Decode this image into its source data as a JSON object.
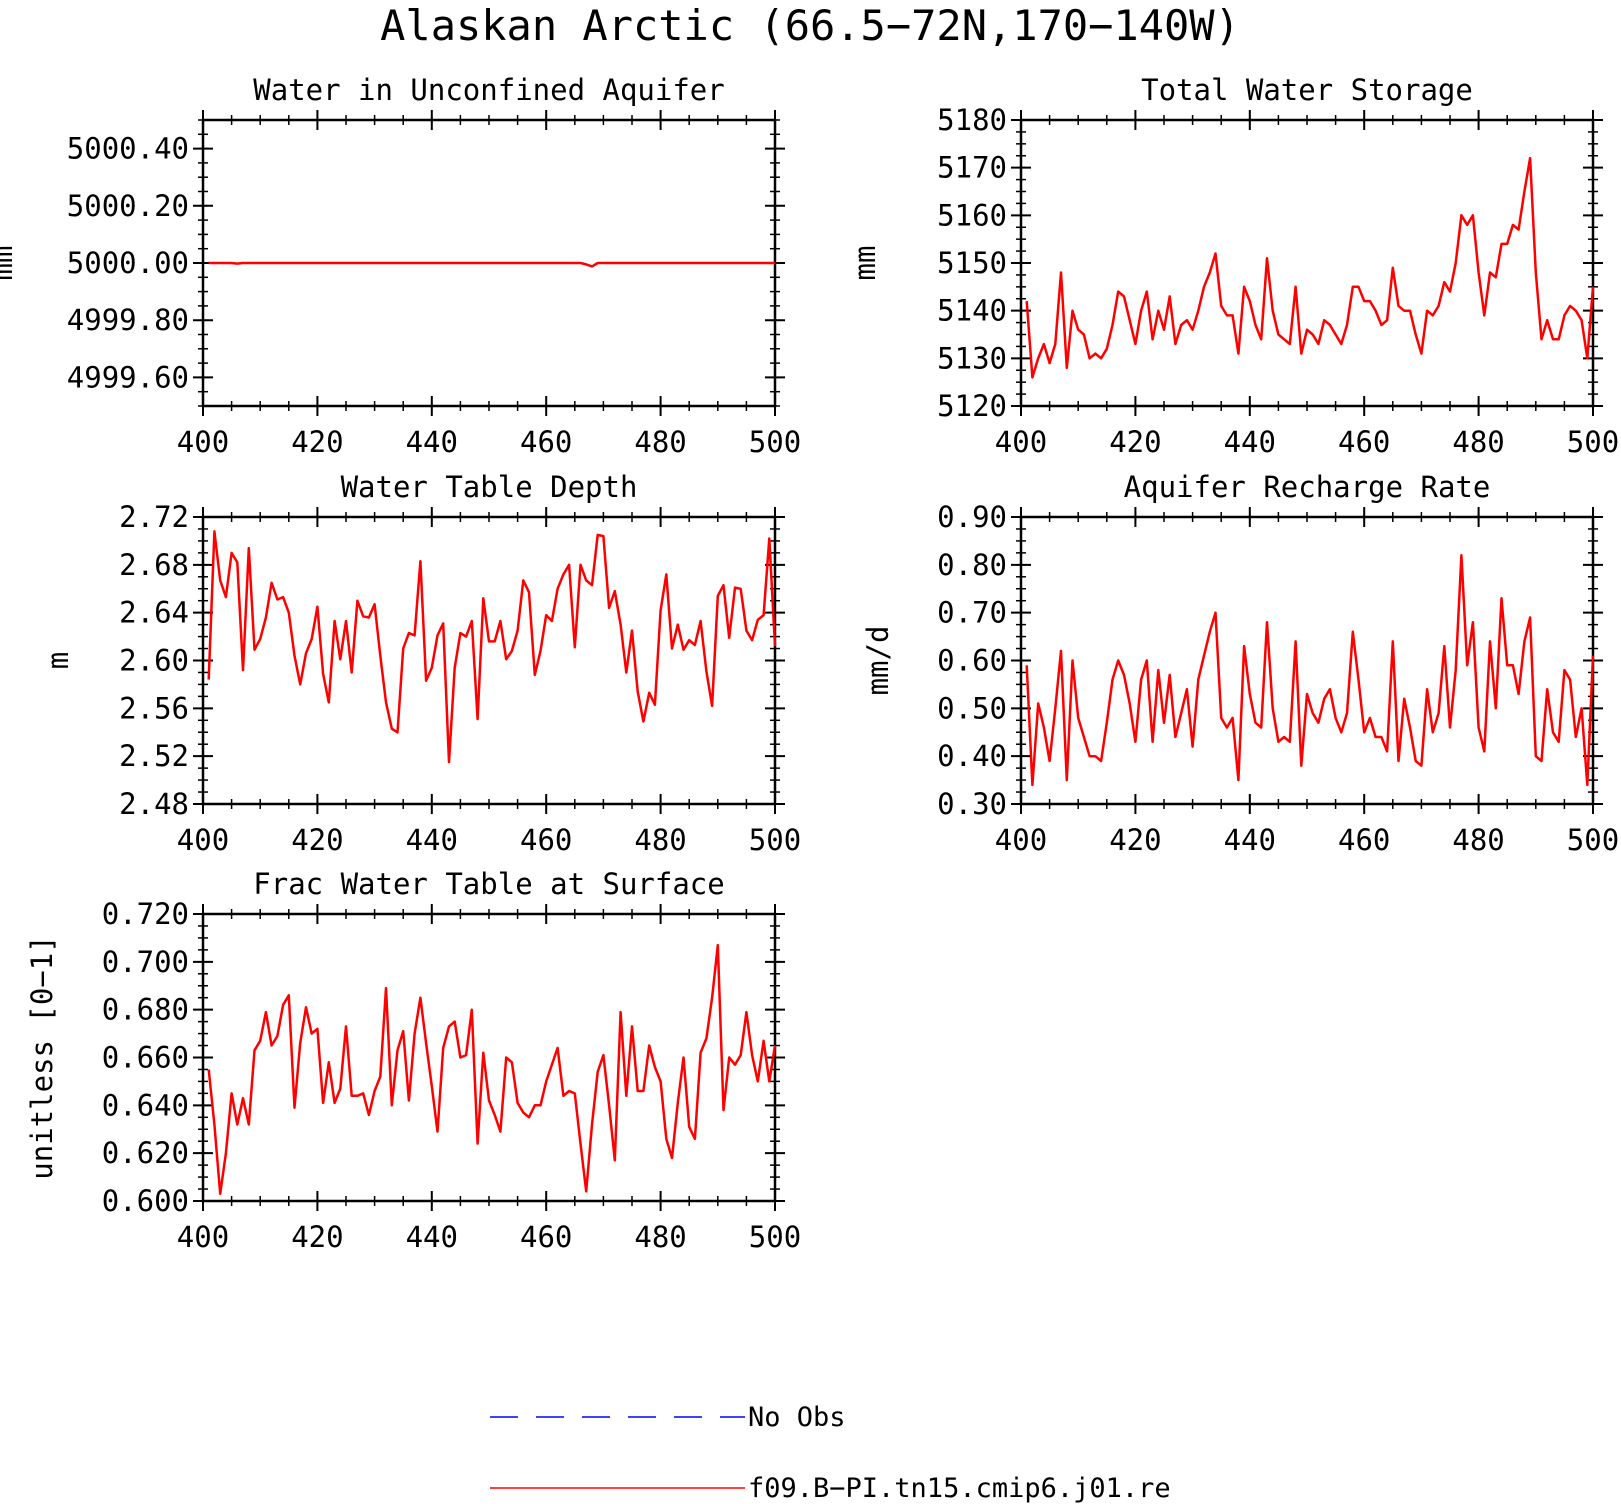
{
  "title": "Alaskan Arctic (66.5−72N,170−140W)",
  "colors": {
    "model": "#ff0000",
    "obs": "#0000ff",
    "axes": "#000000"
  },
  "legend": {
    "entries": [
      {
        "label": "No Obs",
        "style": "dashed",
        "color": "#0000ff"
      },
      {
        "label": "f09.B−PI.tn15.cmip6.j01.re",
        "style": "solid",
        "color": "#ff0000"
      }
    ]
  },
  "chart_data": [
    {
      "type": "line",
      "title": "Water in Unconfined Aquifer",
      "ylabel": "mm",
      "xlim": [
        400,
        500
      ],
      "ylim": [
        4999.5,
        5000.5
      ],
      "xticks": [
        400,
        420,
        440,
        460,
        480,
        500
      ],
      "xtick_labels": [
        "400",
        "420",
        "440",
        "460",
        "480",
        "500"
      ],
      "yticks": [
        4999.6,
        4999.8,
        5000.0,
        5000.2,
        5000.4
      ],
      "ytick_labels": [
        "4999.60",
        "4999.80",
        "5000.00",
        "5000.20",
        "5000.40"
      ],
      "series": [
        {
          "name": "f09.B−PI.tn15.cmip6.j01.re",
          "x": [
            401,
            405,
            406,
            407,
            466,
            467,
            468,
            469,
            500
          ],
          "y": [
            5000.0,
            5000.0,
            4999.998,
            5000.0,
            5000.0,
            4999.995,
            4999.988,
            5000.0,
            5000.0
          ]
        }
      ]
    },
    {
      "type": "line",
      "title": "Total Water Storage",
      "ylabel": "mm",
      "xlim": [
        400,
        500
      ],
      "ylim": [
        5120,
        5180
      ],
      "xticks": [
        400,
        420,
        440,
        460,
        480,
        500
      ],
      "xtick_labels": [
        "400",
        "420",
        "440",
        "460",
        "480",
        "500"
      ],
      "yticks": [
        5120,
        5130,
        5140,
        5150,
        5160,
        5170,
        5180
      ],
      "ytick_labels": [
        "5120",
        "5130",
        "5140",
        "5150",
        "5160",
        "5170",
        "5180"
      ],
      "series": [
        {
          "name": "f09.B−PI.tn15.cmip6.j01.re",
          "x": [
            401,
            402,
            403,
            404,
            405,
            406,
            407,
            408,
            409,
            410,
            411,
            412,
            413,
            414,
            415,
            416,
            417,
            418,
            419,
            420,
            421,
            422,
            423,
            424,
            425,
            426,
            427,
            428,
            429,
            430,
            431,
            432,
            433,
            434,
            435,
            436,
            437,
            438,
            439,
            440,
            441,
            442,
            443,
            444,
            445,
            446,
            447,
            448,
            449,
            450,
            451,
            452,
            453,
            454,
            455,
            456,
            457,
            458,
            459,
            460,
            461,
            462,
            463,
            464,
            465,
            466,
            467,
            468,
            469,
            470,
            471,
            472,
            473,
            474,
            475,
            476,
            477,
            478,
            479,
            480,
            481,
            482,
            483,
            484,
            485,
            486,
            487,
            488,
            489,
            490,
            491,
            492,
            493,
            494,
            495,
            496,
            497,
            498,
            499,
            500
          ],
          "y": [
            5142,
            5126,
            5130,
            5133,
            5129,
            5133,
            5148,
            5128,
            5140,
            5136,
            5135,
            5130,
            5131,
            5130,
            5132,
            5137,
            5144,
            5143,
            5138,
            5133,
            5140,
            5144,
            5134,
            5140,
            5136,
            5143,
            5133,
            5137,
            5138,
            5136,
            5140,
            5145,
            5148,
            5152,
            5141,
            5139,
            5139,
            5131,
            5145,
            5142,
            5137,
            5134,
            5151,
            5140,
            5135,
            5134,
            5133,
            5145,
            5131,
            5136,
            5135,
            5133,
            5138,
            5137,
            5135,
            5133,
            5137,
            5145,
            5145,
            5142,
            5142,
            5140,
            5137,
            5138,
            5149,
            5141,
            5140,
            5140,
            5135,
            5131,
            5140,
            5139,
            5141,
            5146,
            5144,
            5150,
            5160,
            5158,
            5160,
            5148,
            5139,
            5148,
            5147,
            5154,
            5154,
            5158,
            5157,
            5165,
            5172,
            5148,
            5134,
            5138,
            5134,
            5134,
            5139,
            5141,
            5140,
            5138,
            5130,
            5145
          ]
        }
      ]
    },
    {
      "type": "line",
      "title": "Water Table Depth",
      "ylabel": "m",
      "xlim": [
        400,
        500
      ],
      "ylim": [
        2.48,
        2.72
      ],
      "xticks": [
        400,
        420,
        440,
        460,
        480,
        500
      ],
      "xtick_labels": [
        "400",
        "420",
        "440",
        "460",
        "480",
        "500"
      ],
      "yticks": [
        2.48,
        2.52,
        2.56,
        2.6,
        2.64,
        2.68,
        2.72
      ],
      "ytick_labels": [
        "2.48",
        "2.52",
        "2.56",
        "2.60",
        "2.64",
        "2.68",
        "2.72"
      ],
      "series": [
        {
          "name": "f09.B−PI.tn15.cmip6.j01.re",
          "x": [
            401,
            402,
            403,
            404,
            405,
            406,
            407,
            408,
            409,
            410,
            411,
            412,
            413,
            414,
            415,
            416,
            417,
            418,
            419,
            420,
            421,
            422,
            423,
            424,
            425,
            426,
            427,
            428,
            429,
            430,
            431,
            432,
            433,
            434,
            435,
            436,
            437,
            438,
            439,
            440,
            441,
            442,
            443,
            444,
            445,
            446,
            447,
            448,
            449,
            450,
            451,
            452,
            453,
            454,
            455,
            456,
            457,
            458,
            459,
            460,
            461,
            462,
            463,
            464,
            465,
            466,
            467,
            468,
            469,
            470,
            471,
            472,
            473,
            474,
            475,
            476,
            477,
            478,
            479,
            480,
            481,
            482,
            483,
            484,
            485,
            486,
            487,
            488,
            489,
            490,
            491,
            492,
            493,
            494,
            495,
            496,
            497,
            498,
            499,
            500
          ],
          "y": [
            2.584,
            2.708,
            2.667,
            2.653,
            2.69,
            2.682,
            2.592,
            2.694,
            2.609,
            2.618,
            2.636,
            2.665,
            2.651,
            2.653,
            2.64,
            2.604,
            2.58,
            2.606,
            2.618,
            2.645,
            2.589,
            2.565,
            2.633,
            2.601,
            2.633,
            2.59,
            2.65,
            2.637,
            2.636,
            2.647,
            2.604,
            2.565,
            2.543,
            2.54,
            2.61,
            2.623,
            2.621,
            2.683,
            2.583,
            2.594,
            2.621,
            2.631,
            2.515,
            2.594,
            2.623,
            2.62,
            2.633,
            2.551,
            2.652,
            2.616,
            2.616,
            2.633,
            2.601,
            2.608,
            2.625,
            2.667,
            2.657,
            2.588,
            2.608,
            2.638,
            2.633,
            2.66,
            2.672,
            2.68,
            2.611,
            2.68,
            2.667,
            2.663,
            2.705,
            2.704,
            2.644,
            2.658,
            2.63,
            2.59,
            2.625,
            2.574,
            2.549,
            2.573,
            2.563,
            2.642,
            2.672,
            2.61,
            2.63,
            2.609,
            2.617,
            2.613,
            2.633,
            2.591,
            2.562,
            2.654,
            2.663,
            2.619,
            2.661,
            2.66,
            2.625,
            2.617,
            2.634,
            2.638,
            2.702,
            2.612
          ]
        }
      ]
    },
    {
      "type": "line",
      "title": "Aquifer Recharge Rate",
      "ylabel": "mm/d",
      "xlim": [
        400,
        500
      ],
      "ylim": [
        0.3,
        0.9
      ],
      "xticks": [
        400,
        420,
        440,
        460,
        480,
        500
      ],
      "xtick_labels": [
        "400",
        "420",
        "440",
        "460",
        "480",
        "500"
      ],
      "yticks": [
        0.3,
        0.4,
        0.5,
        0.6,
        0.7,
        0.8,
        0.9
      ],
      "ytick_labels": [
        "0.30",
        "0.40",
        "0.50",
        "0.60",
        "0.70",
        "0.80",
        "0.90"
      ],
      "series": [
        {
          "name": "f09.B−PI.tn15.cmip6.j01.re",
          "x": [
            401,
            402,
            403,
            404,
            405,
            406,
            407,
            408,
            409,
            410,
            411,
            412,
            413,
            414,
            415,
            416,
            417,
            418,
            419,
            420,
            421,
            422,
            423,
            424,
            425,
            426,
            427,
            428,
            429,
            430,
            431,
            432,
            433,
            434,
            435,
            436,
            437,
            438,
            439,
            440,
            441,
            442,
            443,
            444,
            445,
            446,
            447,
            448,
            449,
            450,
            451,
            452,
            453,
            454,
            455,
            456,
            457,
            458,
            459,
            460,
            461,
            462,
            463,
            464,
            465,
            466,
            467,
            468,
            469,
            470,
            471,
            472,
            473,
            474,
            475,
            476,
            477,
            478,
            479,
            480,
            481,
            482,
            483,
            484,
            485,
            486,
            487,
            488,
            489,
            490,
            491,
            492,
            493,
            494,
            495,
            496,
            497,
            498,
            499,
            500
          ],
          "y": [
            0.59,
            0.34,
            0.51,
            0.46,
            0.39,
            0.5,
            0.62,
            0.35,
            0.6,
            0.48,
            0.44,
            0.4,
            0.4,
            0.39,
            0.47,
            0.56,
            0.6,
            0.57,
            0.51,
            0.43,
            0.56,
            0.6,
            0.43,
            0.58,
            0.47,
            0.57,
            0.44,
            0.49,
            0.54,
            0.42,
            0.56,
            0.61,
            0.66,
            0.7,
            0.48,
            0.46,
            0.48,
            0.35,
            0.63,
            0.53,
            0.47,
            0.46,
            0.68,
            0.5,
            0.43,
            0.44,
            0.43,
            0.64,
            0.38,
            0.53,
            0.49,
            0.47,
            0.52,
            0.54,
            0.48,
            0.45,
            0.49,
            0.66,
            0.56,
            0.45,
            0.48,
            0.44,
            0.44,
            0.41,
            0.64,
            0.39,
            0.52,
            0.46,
            0.39,
            0.38,
            0.54,
            0.45,
            0.49,
            0.63,
            0.46,
            0.58,
            0.82,
            0.59,
            0.68,
            0.46,
            0.41,
            0.64,
            0.5,
            0.73,
            0.59,
            0.59,
            0.53,
            0.64,
            0.69,
            0.4,
            0.39,
            0.54,
            0.45,
            0.43,
            0.58,
            0.56,
            0.44,
            0.5,
            0.34,
            0.61
          ]
        }
      ]
    },
    {
      "type": "line",
      "title": "Frac Water Table at Surface",
      "ylabel": "unitless [0−1]",
      "xlim": [
        400,
        500
      ],
      "ylim": [
        0.6,
        0.72
      ],
      "xticks": [
        400,
        420,
        440,
        460,
        480,
        500
      ],
      "xtick_labels": [
        "400",
        "420",
        "440",
        "460",
        "480",
        "500"
      ],
      "yticks": [
        0.6,
        0.62,
        0.64,
        0.66,
        0.68,
        0.7,
        0.72
      ],
      "ytick_labels": [
        "0.600",
        "0.620",
        "0.640",
        "0.660",
        "0.680",
        "0.700",
        "0.720"
      ],
      "series": [
        {
          "name": "f09.B−PI.tn15.cmip6.j01.re",
          "x": [
            401,
            402,
            403,
            404,
            405,
            406,
            407,
            408,
            409,
            410,
            411,
            412,
            413,
            414,
            415,
            416,
            417,
            418,
            419,
            420,
            421,
            422,
            423,
            424,
            425,
            426,
            427,
            428,
            429,
            430,
            431,
            432,
            433,
            434,
            435,
            436,
            437,
            438,
            439,
            440,
            441,
            442,
            443,
            444,
            445,
            446,
            447,
            448,
            449,
            450,
            451,
            452,
            453,
            454,
            455,
            456,
            457,
            458,
            459,
            460,
            461,
            462,
            463,
            464,
            465,
            466,
            467,
            468,
            469,
            470,
            471,
            472,
            473,
            474,
            475,
            476,
            477,
            478,
            479,
            480,
            481,
            482,
            483,
            484,
            485,
            486,
            487,
            488,
            489,
            490,
            491,
            492,
            493,
            494,
            495,
            496,
            497,
            498,
            499,
            500
          ],
          "y": [
            0.655,
            0.632,
            0.603,
            0.62,
            0.645,
            0.632,
            0.643,
            0.632,
            0.663,
            0.667,
            0.679,
            0.665,
            0.669,
            0.682,
            0.686,
            0.639,
            0.666,
            0.681,
            0.67,
            0.672,
            0.641,
            0.658,
            0.641,
            0.647,
            0.673,
            0.644,
            0.644,
            0.645,
            0.636,
            0.646,
            0.652,
            0.689,
            0.64,
            0.663,
            0.671,
            0.642,
            0.67,
            0.685,
            0.666,
            0.648,
            0.629,
            0.664,
            0.673,
            0.675,
            0.66,
            0.661,
            0.68,
            0.624,
            0.662,
            0.642,
            0.636,
            0.629,
            0.66,
            0.658,
            0.641,
            0.637,
            0.635,
            0.64,
            0.64,
            0.65,
            0.657,
            0.664,
            0.644,
            0.646,
            0.645,
            0.624,
            0.604,
            0.632,
            0.654,
            0.661,
            0.64,
            0.617,
            0.679,
            0.644,
            0.673,
            0.646,
            0.646,
            0.665,
            0.656,
            0.65,
            0.626,
            0.618,
            0.641,
            0.66,
            0.631,
            0.626,
            0.662,
            0.668,
            0.685,
            0.707,
            0.638,
            0.66,
            0.657,
            0.661,
            0.679,
            0.661,
            0.65,
            0.667,
            0.65,
            0.665
          ]
        }
      ]
    }
  ]
}
